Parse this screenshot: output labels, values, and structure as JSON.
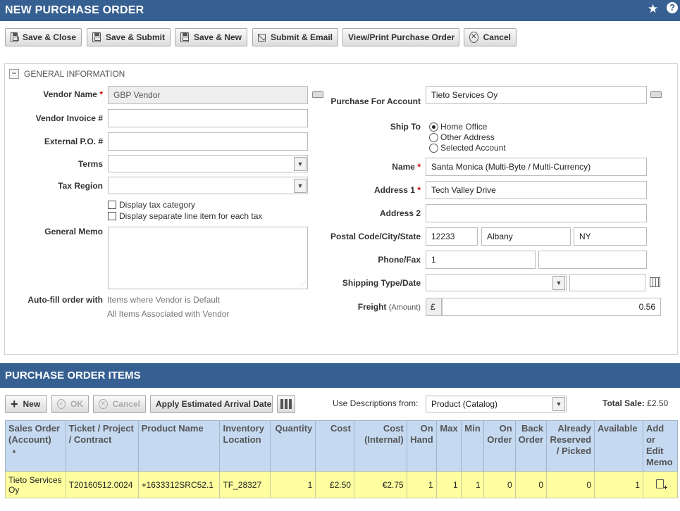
{
  "header": {
    "title": "NEW PURCHASE ORDER",
    "star_icon": "star-icon",
    "help_icon": "help-icon"
  },
  "toolbar": {
    "save_close": "Save & Close",
    "save_submit": "Save & Submit",
    "save_new": "Save & New",
    "submit_email": "Submit & Email",
    "view_print": "View/Print Purchase Order",
    "cancel": "Cancel"
  },
  "general": {
    "section_title": "GENERAL INFORMATION",
    "collapse_symbol": "−",
    "vendor_name_label": "Vendor Name",
    "vendor_name_value": "GBP Vendor",
    "vendor_invoice_label": "Vendor Invoice #",
    "vendor_invoice_value": "",
    "external_po_label": "External P.O. #",
    "external_po_value": "",
    "terms_label": "Terms",
    "terms_value": "",
    "tax_region_label": "Tax Region",
    "tax_region_value": "",
    "display_tax_category": "Display tax category",
    "display_tax_category_checked": false,
    "display_separate_line": "Display separate line item for each tax",
    "display_separate_line_checked": false,
    "general_memo_label": "General Memo",
    "general_memo_value": "",
    "autofill_label": "Auto-fill order with",
    "autofill_option1": "Items where Vendor is Default",
    "autofill_option2": "All Items Associated with Vendor",
    "purchase_for_label": "Purchase For Account",
    "purchase_for_value": "Tieto Services Oy",
    "ship_to_label": "Ship To",
    "ship_to_options": [
      "Home Office",
      "Other Address",
      "Selected Account"
    ],
    "ship_to_selected": "Home Office",
    "name_label": "Name",
    "name_value": "Santa Monica (Multi-Byte / Multi-Currency)",
    "address1_label": "Address 1",
    "address1_value": "Tech Valley Drive",
    "address2_label": "Address 2",
    "address2_value": "",
    "postal_label": "Postal Code/City/State",
    "postal_value": "12233",
    "city_value": "Albany",
    "state_value": "NY",
    "phone_label": "Phone/Fax",
    "phone_value": "1",
    "fax_value": "",
    "shipping_label": "Shipping Type/Date",
    "shipping_type_value": "",
    "shipping_date_value": "",
    "freight_label": "Freight",
    "freight_sub": "(Amount)",
    "freight_currency": "£",
    "freight_value": "0.56"
  },
  "items_section": {
    "title": "PURCHASE ORDER ITEMS",
    "new_btn": "New",
    "ok_btn": "OK",
    "cancel_btn": "Cancel",
    "apply_btn": "Apply Estimated Arrival Date",
    "use_desc_label": "Use Descriptions from:",
    "use_desc_value": "Product (Catalog)",
    "total_sale_label": "Total Sale:",
    "total_sale_value": "£2.50",
    "columns": {
      "sales_order": "Sales Order (Account)",
      "ticket": "Ticket / Project / Contract",
      "product": "Product Name",
      "inventory": "Inventory Location",
      "quantity": "Quantity",
      "cost": "Cost",
      "cost_internal": "Cost (Internal)",
      "on_hand": "On Hand",
      "max": "Max",
      "min": "Min",
      "on_order": "On Order",
      "back_order": "Back Order",
      "reserved": "Already Reserved / Picked",
      "available": "Available",
      "memo": "Add or Edit Memo"
    },
    "row": {
      "sales_order": "Tieto Services Oy",
      "ticket": "T20160512.0024",
      "product": "+1633312SRC52.1",
      "inventory": "TF_28327",
      "quantity": "1",
      "cost": "£2.50",
      "cost_internal": "€2.75",
      "on_hand": "1",
      "max": "1",
      "min": "1",
      "on_order": "0",
      "back_order": "0",
      "reserved": "0",
      "available": "1"
    }
  }
}
